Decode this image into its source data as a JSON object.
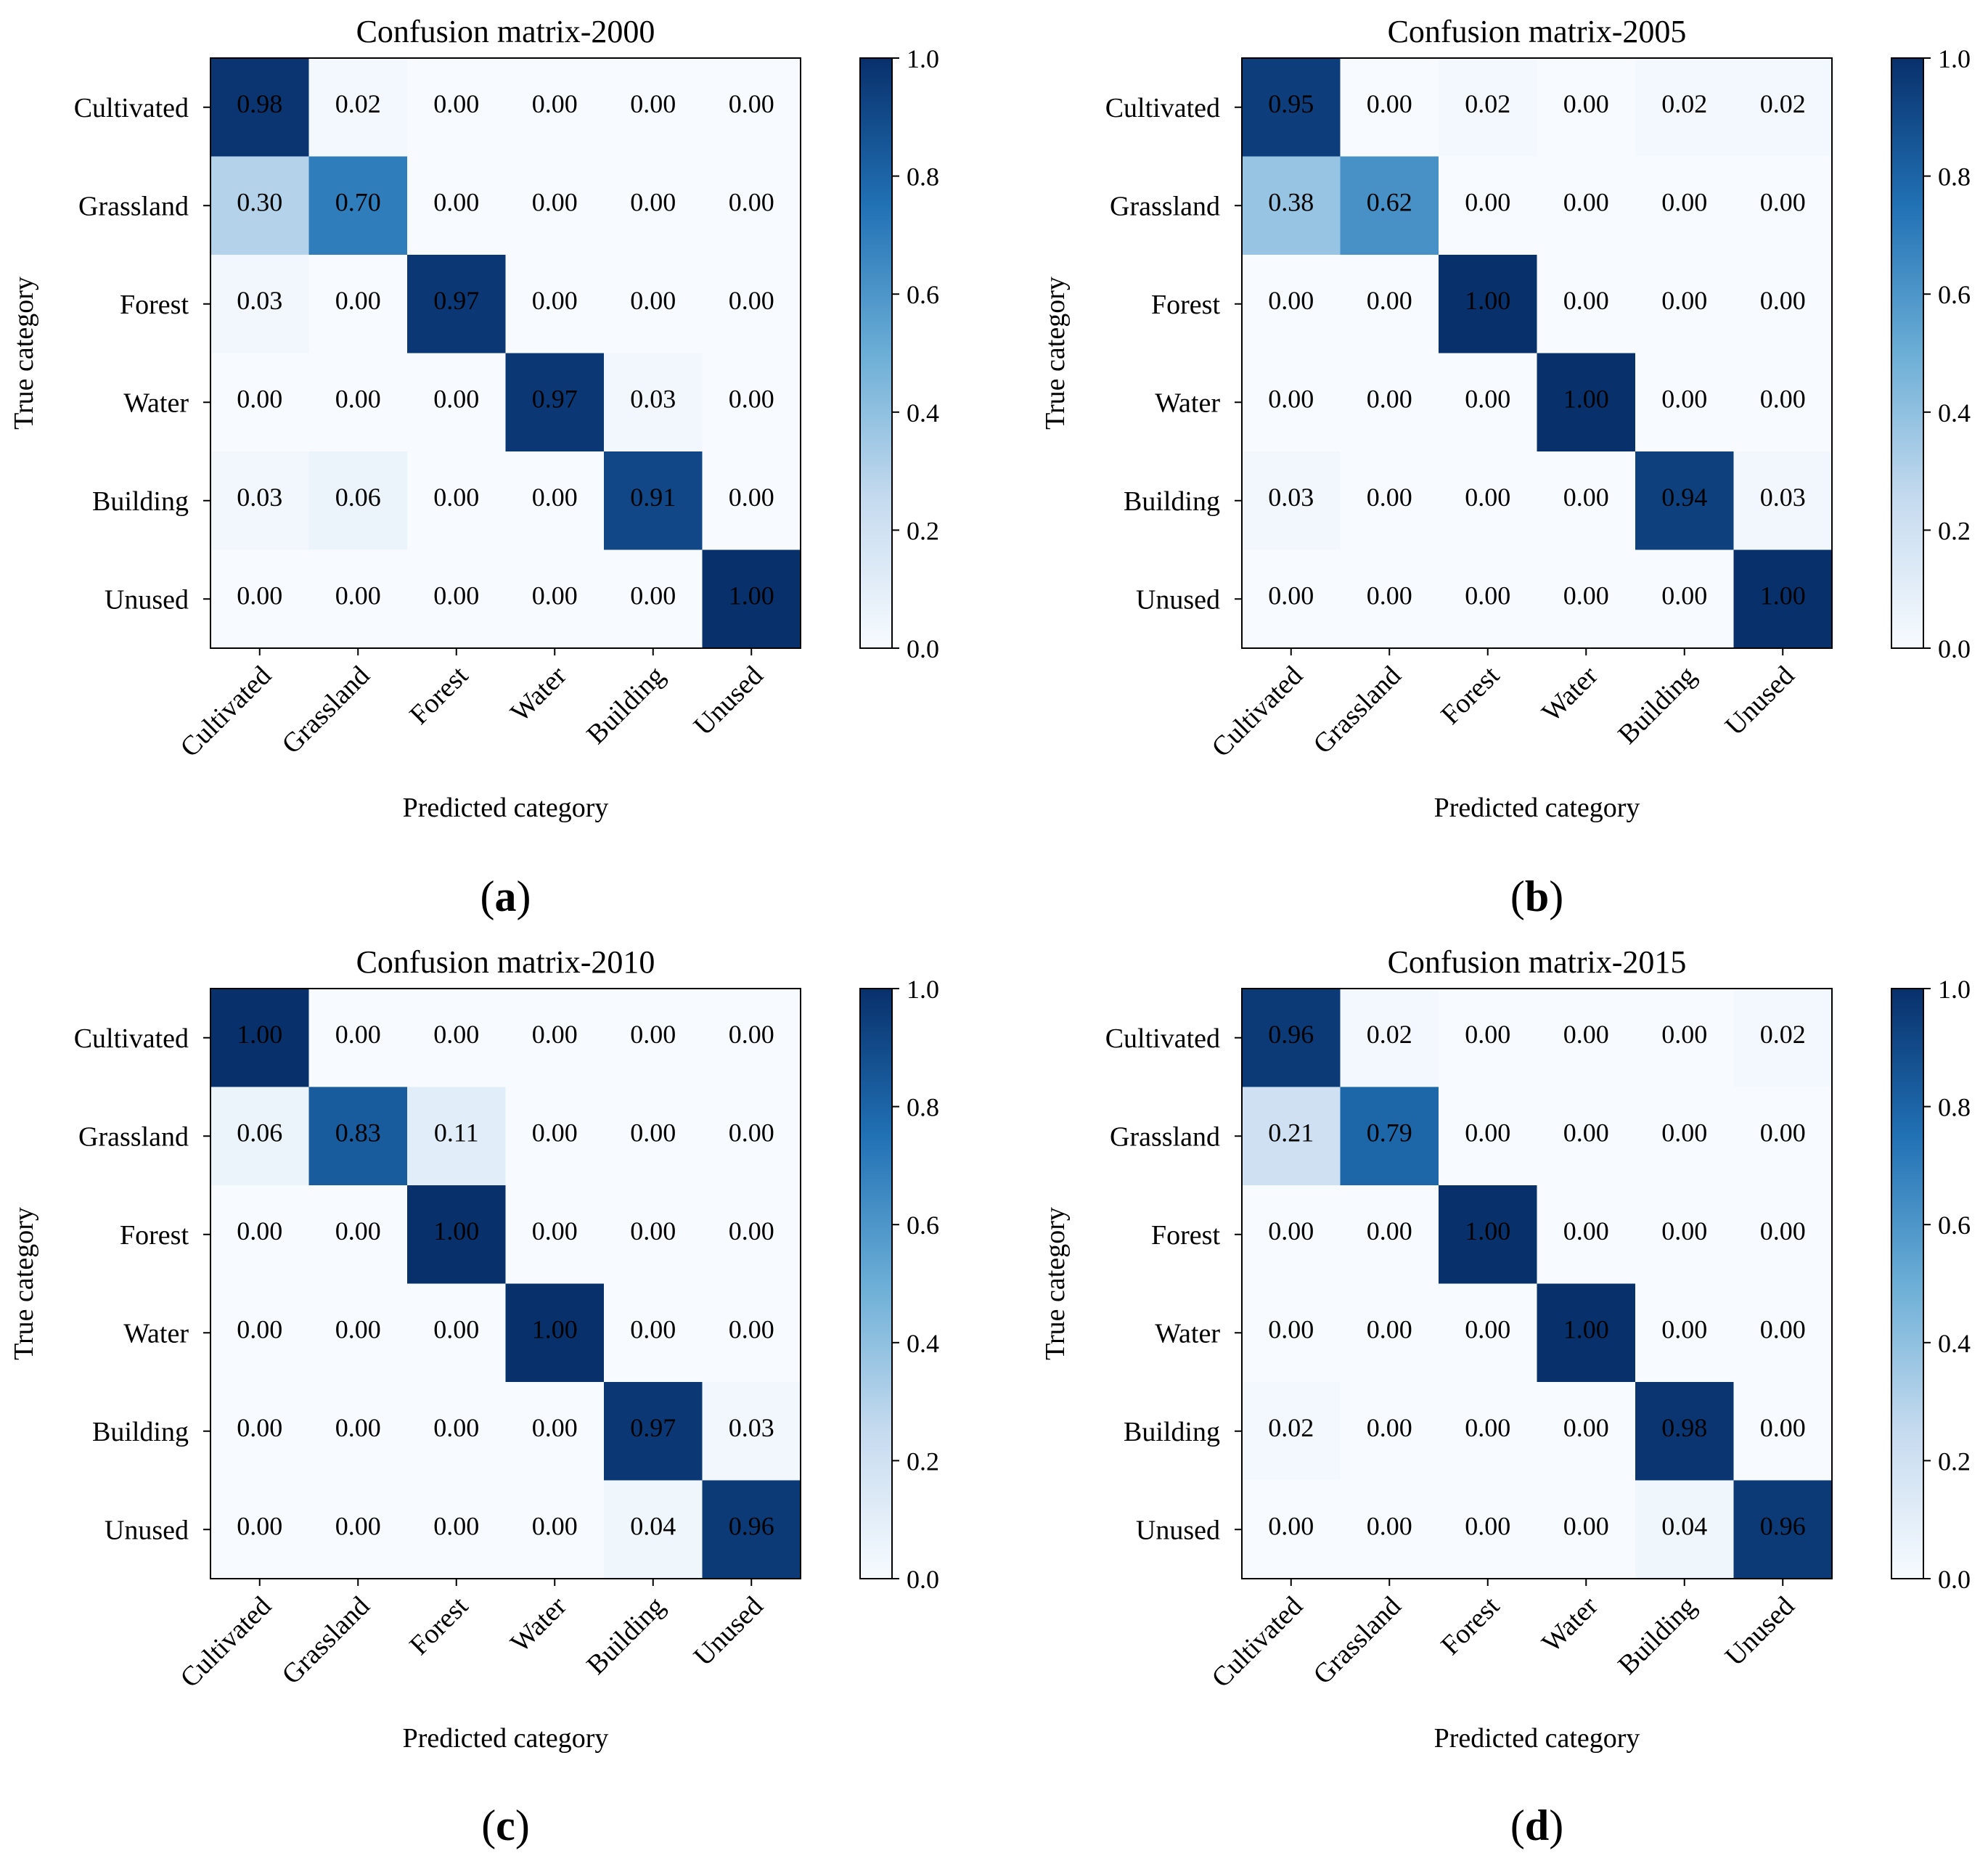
{
  "figure": {
    "panel_labels": [
      {
        "open": "(",
        "letter": "a",
        "close": ")"
      },
      {
        "open": "(",
        "letter": "b",
        "close": ")"
      },
      {
        "open": "(",
        "letter": "c",
        "close": ")"
      },
      {
        "open": "(",
        "letter": "d",
        "close": ")"
      }
    ],
    "colormap": {
      "low": "#f7fbff",
      "mid_1": "#c6dbef",
      "mid_2": "#6baed6",
      "mid_3": "#2171b5",
      "high": "#08306b"
    },
    "text_dark": "#000000",
    "text_light": "#ffffff"
  },
  "chart_data": [
    {
      "type": "heatmap",
      "title": "Confusion matrix-2000",
      "xlabel": "Predicted category",
      "ylabel": "True category",
      "x_categories": [
        "Cultivated",
        "Grassland",
        "Forest",
        "Water",
        "Building",
        "Unused"
      ],
      "y_categories": [
        "Cultivated",
        "Grassland",
        "Forest",
        "Water",
        "Building",
        "Unused"
      ],
      "values": [
        [
          0.98,
          0.02,
          0.0,
          0.0,
          0.0,
          0.0
        ],
        [
          0.3,
          0.7,
          0.0,
          0.0,
          0.0,
          0.0
        ],
        [
          0.03,
          0.0,
          0.97,
          0.0,
          0.0,
          0.0
        ],
        [
          0.0,
          0.0,
          0.0,
          0.97,
          0.03,
          0.0
        ],
        [
          0.03,
          0.06,
          0.0,
          0.0,
          0.91,
          0.0
        ],
        [
          0.0,
          0.0,
          0.0,
          0.0,
          0.0,
          1.0
        ]
      ],
      "value_format": "0.00",
      "colorbar": {
        "range": [
          0.0,
          1.0
        ],
        "ticks": [
          "0.0",
          "0.2",
          "0.4",
          "0.6",
          "0.8",
          "1.0"
        ]
      }
    },
    {
      "type": "heatmap",
      "title": "Confusion matrix-2005",
      "xlabel": "Predicted category",
      "ylabel": "True category",
      "x_categories": [
        "Cultivated",
        "Grassland",
        "Forest",
        "Water",
        "Building",
        "Unused"
      ],
      "y_categories": [
        "Cultivated",
        "Grassland",
        "Forest",
        "Water",
        "Building",
        "Unused"
      ],
      "values": [
        [
          0.95,
          0.0,
          0.02,
          0.0,
          0.02,
          0.02
        ],
        [
          0.38,
          0.62,
          0.0,
          0.0,
          0.0,
          0.0
        ],
        [
          0.0,
          0.0,
          1.0,
          0.0,
          0.0,
          0.0
        ],
        [
          0.0,
          0.0,
          0.0,
          1.0,
          0.0,
          0.0
        ],
        [
          0.03,
          0.0,
          0.0,
          0.0,
          0.94,
          0.03
        ],
        [
          0.0,
          0.0,
          0.0,
          0.0,
          0.0,
          1.0
        ]
      ],
      "value_format": "0.00",
      "colorbar": {
        "range": [
          0.0,
          1.0
        ],
        "ticks": [
          "0.0",
          "0.2",
          "0.4",
          "0.6",
          "0.8",
          "1.0"
        ]
      }
    },
    {
      "type": "heatmap",
      "title": "Confusion matrix-2010",
      "xlabel": "Predicted category",
      "ylabel": "True category",
      "x_categories": [
        "Cultivated",
        "Grassland",
        "Forest",
        "Water",
        "Building",
        "Unused"
      ],
      "y_categories": [
        "Cultivated",
        "Grassland",
        "Forest",
        "Water",
        "Building",
        "Unused"
      ],
      "values": [
        [
          1.0,
          0.0,
          0.0,
          0.0,
          0.0,
          0.0
        ],
        [
          0.06,
          0.83,
          0.11,
          0.0,
          0.0,
          0.0
        ],
        [
          0.0,
          0.0,
          1.0,
          0.0,
          0.0,
          0.0
        ],
        [
          0.0,
          0.0,
          0.0,
          1.0,
          0.0,
          0.0
        ],
        [
          0.0,
          0.0,
          0.0,
          0.0,
          0.97,
          0.03
        ],
        [
          0.0,
          0.0,
          0.0,
          0.0,
          0.04,
          0.96
        ]
      ],
      "value_format": "0.00",
      "colorbar": {
        "range": [
          0.0,
          1.0
        ],
        "ticks": [
          "0.0",
          "0.2",
          "0.4",
          "0.6",
          "0.8",
          "1.0"
        ]
      }
    },
    {
      "type": "heatmap",
      "title": "Confusion matrix-2015",
      "xlabel": "Predicted category",
      "ylabel": "True category",
      "x_categories": [
        "Cultivated",
        "Grassland",
        "Forest",
        "Water",
        "Building",
        "Unused"
      ],
      "y_categories": [
        "Cultivated",
        "Grassland",
        "Forest",
        "Water",
        "Building",
        "Unused"
      ],
      "values": [
        [
          0.96,
          0.02,
          0.0,
          0.0,
          0.0,
          0.02
        ],
        [
          0.21,
          0.79,
          0.0,
          0.0,
          0.0,
          0.0
        ],
        [
          0.0,
          0.0,
          1.0,
          0.0,
          0.0,
          0.0
        ],
        [
          0.0,
          0.0,
          0.0,
          1.0,
          0.0,
          0.0
        ],
        [
          0.02,
          0.0,
          0.0,
          0.0,
          0.98,
          0.0
        ],
        [
          0.0,
          0.0,
          0.0,
          0.0,
          0.04,
          0.96
        ]
      ],
      "value_format": "0.00",
      "colorbar": {
        "range": [
          0.0,
          1.0
        ],
        "ticks": [
          "0.0",
          "0.2",
          "0.4",
          "0.6",
          "0.8",
          "1.0"
        ]
      }
    }
  ]
}
